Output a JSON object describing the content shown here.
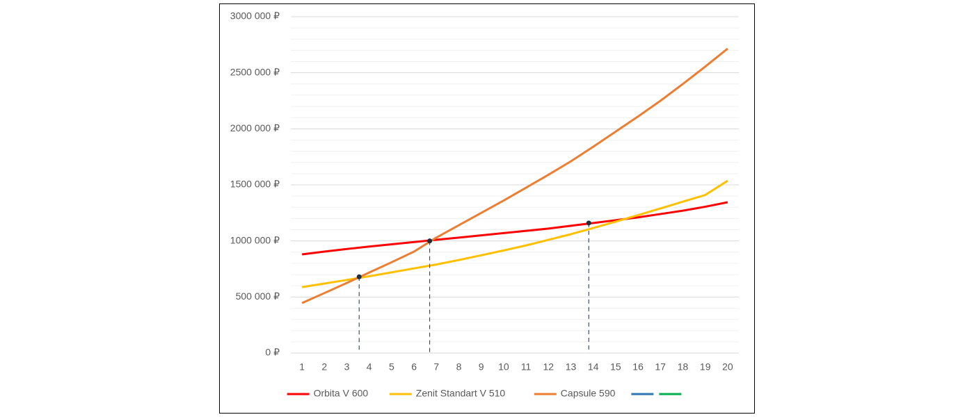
{
  "chart_data": {
    "type": "line",
    "categories": [
      1,
      2,
      3,
      4,
      5,
      6,
      7,
      8,
      9,
      10,
      11,
      12,
      13,
      14,
      15,
      16,
      17,
      18,
      19,
      20
    ],
    "series": [
      {
        "name": "Orbita V 600",
        "color": "#ff0000",
        "values": [
          880000,
          905000,
          928000,
          950000,
          970000,
          990000,
          1010000,
          1030000,
          1050000,
          1070000,
          1090000,
          1110000,
          1135000,
          1160000,
          1185000,
          1210000,
          1240000,
          1270000,
          1305000,
          1345000
        ]
      },
      {
        "name": "Zenit Standart V 510",
        "color": "#ffc000",
        "values": [
          588000,
          620000,
          652000,
          685000,
          720000,
          755000,
          790000,
          830000,
          872000,
          915000,
          960000,
          1010000,
          1060000,
          1115000,
          1172000,
          1230000,
          1290000,
          1350000,
          1410000,
          1537000
        ]
      },
      {
        "name": "Capsule 590",
        "color": "#ed7d31",
        "values": [
          446000,
          535000,
          625000,
          718000,
          810000,
          905000,
          1030000,
          1140000,
          1250000,
          1360000,
          1475000,
          1590000,
          1710000,
          1840000,
          1975000,
          2110000,
          2250000,
          2400000,
          2555000,
          2715000
        ]
      },
      {
        "color": "#2e75b6",
        "values": [
          null,
          null,
          null,
          null,
          null,
          null,
          null,
          null,
          null,
          null,
          null,
          null,
          null,
          null,
          null,
          null,
          null,
          null,
          null,
          null
        ]
      },
      {
        "color": "#00b050",
        "values": [
          null,
          null,
          null,
          null,
          null,
          null,
          null,
          null,
          null,
          null,
          null,
          null,
          null,
          null,
          null,
          null,
          null,
          null,
          null,
          null
        ]
      }
    ],
    "markers": [
      {
        "x": 3.55,
        "y": 680000
      },
      {
        "x": 6.7,
        "y": 1000000
      },
      {
        "x": 13.8,
        "y": 1160000
      }
    ],
    "marker_color": "#1f2d3d",
    "ylim": [
      0,
      3000000
    ],
    "yticks": [
      {
        "value": 0,
        "label": "0 ₽"
      },
      {
        "value": 500000,
        "label": "500 000 ₽"
      },
      {
        "value": 1000000,
        "label": "1000 000 ₽"
      },
      {
        "value": 1500000,
        "label": "1500 000 ₽"
      },
      {
        "value": 2000000,
        "label": "2000 000 ₽"
      },
      {
        "value": 2500000,
        "label": "2500 000 ₽"
      },
      {
        "value": 3000000,
        "label": "3000 000 ₽"
      }
    ],
    "yminor_ticks": [
      100000,
      200000,
      300000,
      400000,
      600000,
      700000,
      800000,
      900000,
      1100000,
      1200000,
      1300000,
      1400000,
      1600000,
      1700000,
      1800000,
      1900000,
      2100000,
      2200000,
      2300000,
      2400000,
      2600000,
      2700000,
      2800000,
      2900000
    ],
    "grid": true,
    "legend": "bottom"
  }
}
